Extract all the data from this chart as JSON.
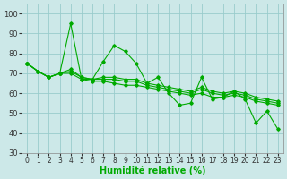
{
  "background_color": "#cce8e8",
  "grid_color": "#99cccc",
  "line_color": "#00aa00",
  "xlabel": "Humidité relative (%)",
  "xlabel_fontsize": 7,
  "tick_fontsize": 6,
  "ylim": [
    30,
    105
  ],
  "xlim": [
    -0.5,
    23.5
  ],
  "yticks": [
    30,
    40,
    50,
    60,
    70,
    80,
    90,
    100
  ],
  "xticks": [
    0,
    1,
    2,
    3,
    4,
    5,
    6,
    7,
    8,
    9,
    10,
    11,
    12,
    13,
    14,
    15,
    16,
    17,
    18,
    19,
    20,
    21,
    22,
    23
  ],
  "series": [
    [
      75,
      71,
      68,
      70,
      95,
      67,
      67,
      76,
      84,
      81,
      75,
      65,
      68,
      60,
      54,
      55,
      68,
      57,
      58,
      61,
      57,
      45,
      51,
      42
    ],
    [
      75,
      71,
      68,
      70,
      72,
      68,
      67,
      68,
      68,
      67,
      67,
      65,
      64,
      63,
      62,
      61,
      63,
      61,
      60,
      61,
      60,
      58,
      57,
      56
    ],
    [
      75,
      71,
      68,
      70,
      71,
      68,
      67,
      67,
      67,
      66,
      66,
      64,
      63,
      62,
      61,
      60,
      62,
      60,
      59,
      60,
      59,
      57,
      56,
      55
    ],
    [
      75,
      71,
      68,
      70,
      70,
      67,
      66,
      66,
      65,
      64,
      64,
      63,
      62,
      61,
      60,
      59,
      60,
      58,
      58,
      59,
      58,
      56,
      55,
      54
    ]
  ]
}
